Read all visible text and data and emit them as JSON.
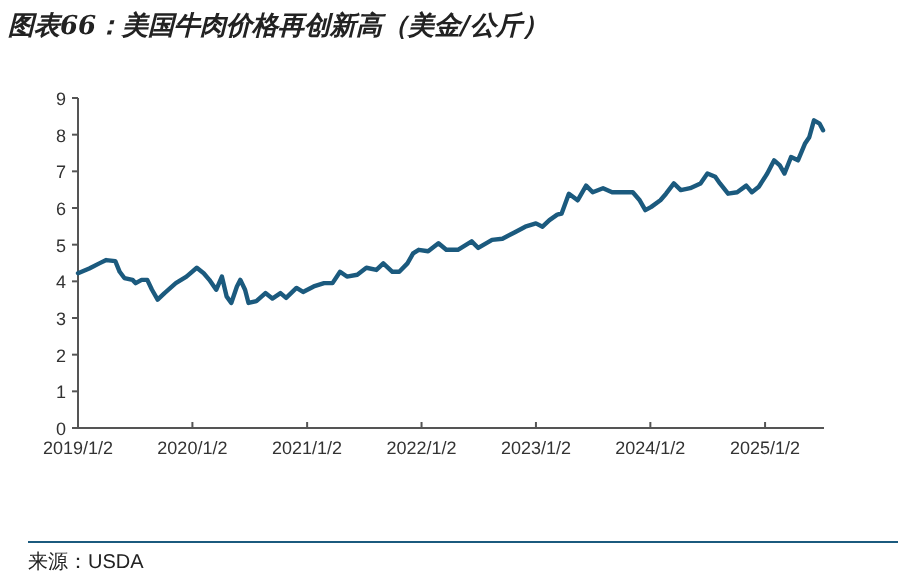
{
  "chart_data": {
    "type": "line",
    "title": "图表66：美国牛肉价格再创新高（美金/公斤）",
    "annotations": [
      "来源：USDA"
    ],
    "x": [
      "2019-01-02",
      "2019-02-07",
      "2019-03-11",
      "2019-04-02",
      "2019-05-01",
      "2019-05-15",
      "2019-05-30",
      "2019-06-25",
      "2019-07-05",
      "2019-07-24",
      "2019-08-11",
      "2019-08-26",
      "2019-09-13",
      "2019-10-05",
      "2019-11-10",
      "2019-12-14",
      "2020-01-16",
      "2020-02-07",
      "2020-02-25",
      "2020-03-18",
      "2020-04-05",
      "2020-04-20",
      "2020-05-05",
      "2020-05-23",
      "2020-06-03",
      "2020-06-18",
      "2020-06-29",
      "2020-07-24",
      "2020-08-22",
      "2020-09-13",
      "2020-10-09",
      "2020-10-27",
      "2020-11-29",
      "2020-12-20",
      "2021-01-23",
      "2021-02-25",
      "2021-03-24",
      "2021-04-17",
      "2021-05-09",
      "2021-06-11",
      "2021-07-10",
      "2021-08-11",
      "2021-09-02",
      "2021-10-01",
      "2021-10-23",
      "2021-11-18",
      "2021-12-06",
      "2021-12-24",
      "2022-01-23",
      "2022-02-25",
      "2022-03-22",
      "2022-04-28",
      "2022-06-11",
      "2022-07-02",
      "2022-08-15",
      "2022-09-17",
      "2022-10-27",
      "2022-11-29",
      "2023-01-02",
      "2023-01-23",
      "2023-02-14",
      "2023-03-11",
      "2023-03-25",
      "2023-04-17",
      "2023-05-15",
      "2023-06-11",
      "2023-07-02",
      "2023-08-04",
      "2023-09-02",
      "2023-10-05",
      "2023-11-07",
      "2023-11-29",
      "2023-12-17",
      "2024-01-05",
      "2024-02-03",
      "2024-02-21",
      "2024-03-17",
      "2024-04-08",
      "2024-05-08",
      "2024-06-10",
      "2024-07-02",
      "2024-07-27",
      "2024-08-11",
      "2024-09-06",
      "2024-10-05",
      "2024-11-03",
      "2024-11-21",
      "2024-12-13",
      "2025-01-09",
      "2025-01-31",
      "2025-02-18",
      "2025-03-05",
      "2025-03-26",
      "2025-04-17",
      "2025-05-09",
      "2025-05-23",
      "2025-06-07",
      "2025-06-25",
      "2025-07-06"
    ],
    "series": [
      {
        "color": "#1b5a7e",
        "values": [
          4.22,
          4.35,
          4.49,
          4.58,
          4.55,
          4.26,
          4.09,
          4.04,
          3.95,
          4.04,
          4.04,
          3.77,
          3.5,
          3.68,
          3.95,
          4.13,
          4.37,
          4.22,
          4.04,
          3.77,
          4.13,
          3.59,
          3.41,
          3.86,
          4.04,
          3.77,
          3.41,
          3.46,
          3.68,
          3.53,
          3.68,
          3.55,
          3.82,
          3.71,
          3.86,
          3.95,
          3.95,
          4.26,
          4.13,
          4.18,
          4.37,
          4.31,
          4.49,
          4.26,
          4.26,
          4.49,
          4.76,
          4.86,
          4.82,
          5.04,
          4.86,
          4.86,
          5.09,
          4.91,
          5.13,
          5.16,
          5.34,
          5.49,
          5.58,
          5.49,
          5.67,
          5.82,
          5.85,
          6.39,
          6.21,
          6.61,
          6.43,
          6.54,
          6.43,
          6.43,
          6.43,
          6.21,
          5.94,
          6.03,
          6.21,
          6.39,
          6.67,
          6.49,
          6.54,
          6.67,
          6.94,
          6.85,
          6.67,
          6.39,
          6.43,
          6.61,
          6.43,
          6.58,
          6.94,
          7.3,
          7.16,
          6.94,
          7.39,
          7.3,
          7.75,
          7.93,
          8.39,
          8.3,
          8.12
        ]
      }
    ],
    "xlim": [
      "2019-01-02",
      "2025-07-09"
    ],
    "xticks": [
      {
        "value": "2019-01-02",
        "label": "2019/1/2"
      },
      {
        "value": "2020-01-02",
        "label": "2020/1/2"
      },
      {
        "value": "2021-01-02",
        "label": "2021/1/2"
      },
      {
        "value": "2022-01-02",
        "label": "2022/1/2"
      },
      {
        "value": "2023-01-02",
        "label": "2023/1/2"
      },
      {
        "value": "2024-01-02",
        "label": "2024/1/2"
      },
      {
        "value": "2025-01-02",
        "label": "2025/1/2"
      }
    ],
    "ylim": [
      0,
      9
    ],
    "yticks": [
      0,
      1,
      2,
      3,
      4,
      5,
      6,
      7,
      8,
      9
    ],
    "grid": false,
    "marker": "none",
    "line_style": "solid"
  }
}
